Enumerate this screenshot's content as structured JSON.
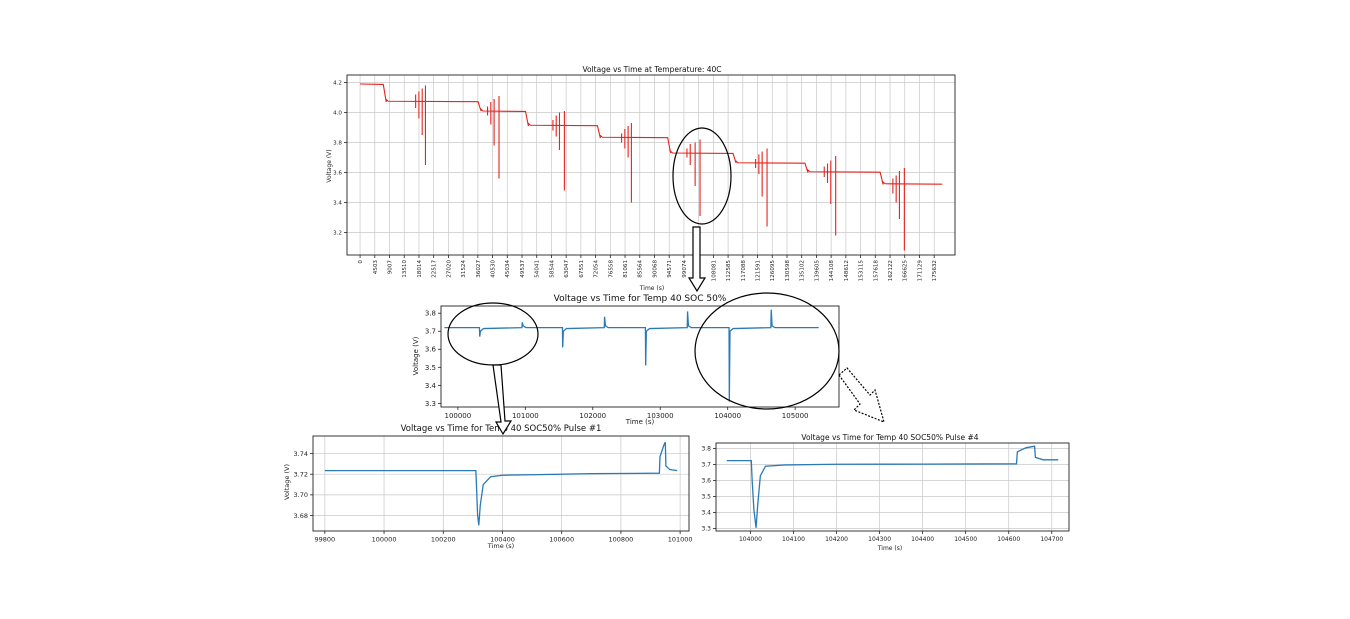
{
  "chart_data": [
    {
      "id": "overview",
      "type": "line",
      "title": "Voltage vs Time at Temperature: 40C",
      "xlabel": "Time (s)",
      "ylabel": "Voltage (V)",
      "ylim": [
        3.05,
        4.25
      ],
      "xlim": [
        -4000,
        182000
      ],
      "grid": true,
      "series_color": "#e8211b",
      "x_tick_labels": [
        "0",
        "4503",
        "9007",
        "13510",
        "18014",
        "22517",
        "27020",
        "31524",
        "36027",
        "40530",
        "45034",
        "49537",
        "54041",
        "58544",
        "63047",
        "67551",
        "72054",
        "76558",
        "81061",
        "85564",
        "90068",
        "94571",
        "99074",
        "103578",
        "108081",
        "112585",
        "117088",
        "121591",
        "126095",
        "130598",
        "135102",
        "139605",
        "144108",
        "148612",
        "153115",
        "157618",
        "162122",
        "166625",
        "171129",
        "175632"
      ],
      "y_ticks": [
        3.2,
        3.4,
        3.6,
        3.8,
        4.0,
        4.2
      ],
      "y_tick_labels": [
        "3.2",
        "3.4",
        "3.6",
        "3.8",
        "4.0",
        "4.2"
      ],
      "soc_blocks": [
        {
          "start": 0,
          "end": 8000,
          "rest": 4.19,
          "next": 4.07
        },
        {
          "start": 8000,
          "end": 37000,
          "rest": 4.075,
          "next": 4.01
        },
        {
          "start": 37000,
          "end": 51500,
          "rest": 4.01,
          "next": 3.91
        },
        {
          "start": 51500,
          "end": 73500,
          "rest": 3.915,
          "next": 3.83
        },
        {
          "start": 73500,
          "end": 95000,
          "rest": 3.835,
          "next": 3.73
        },
        {
          "start": 95000,
          "end": 115000,
          "rest": 3.73,
          "next": 3.665
        },
        {
          "start": 115000,
          "end": 137000,
          "rest": 3.665,
          "next": 3.6
        },
        {
          "start": 137000,
          "end": 160000,
          "rest": 3.605,
          "next": 3.52
        },
        {
          "start": 160000,
          "end": 179000,
          "rest": 3.525,
          "next": 3.525
        }
      ],
      "pulses": [
        {
          "x": 17000,
          "min": 4.03,
          "max": 4.12
        },
        {
          "x": 18000,
          "min": 3.96,
          "max": 4.14
        },
        {
          "x": 19000,
          "min": 3.85,
          "max": 4.16
        },
        {
          "x": 20000,
          "min": 3.65,
          "max": 4.18
        },
        {
          "x": 39000,
          "min": 3.98,
          "max": 4.04
        },
        {
          "x": 40000,
          "min": 3.92,
          "max": 4.07
        },
        {
          "x": 41000,
          "min": 3.78,
          "max": 4.09
        },
        {
          "x": 42500,
          "min": 3.56,
          "max": 4.11
        },
        {
          "x": 59000,
          "min": 3.88,
          "max": 3.95
        },
        {
          "x": 60000,
          "min": 3.84,
          "max": 3.98
        },
        {
          "x": 61000,
          "min": 3.75,
          "max": 4.0
        },
        {
          "x": 62500,
          "min": 3.48,
          "max": 4.01
        },
        {
          "x": 80000,
          "min": 3.8,
          "max": 3.86
        },
        {
          "x": 81000,
          "min": 3.76,
          "max": 3.89
        },
        {
          "x": 82000,
          "min": 3.7,
          "max": 3.91
        },
        {
          "x": 83000,
          "min": 3.4,
          "max": 3.93
        },
        {
          "x": 100000,
          "min": 3.7,
          "max": 3.76
        },
        {
          "x": 101000,
          "min": 3.65,
          "max": 3.79
        },
        {
          "x": 102500,
          "min": 3.51,
          "max": 3.8
        },
        {
          "x": 104000,
          "min": 3.31,
          "max": 3.82
        },
        {
          "x": 121000,
          "min": 3.63,
          "max": 3.69
        },
        {
          "x": 122000,
          "min": 3.59,
          "max": 3.72
        },
        {
          "x": 123000,
          "min": 3.44,
          "max": 3.74
        },
        {
          "x": 124500,
          "min": 3.24,
          "max": 3.76
        },
        {
          "x": 142000,
          "min": 3.57,
          "max": 3.64
        },
        {
          "x": 143000,
          "min": 3.53,
          "max": 3.66
        },
        {
          "x": 144000,
          "min": 3.39,
          "max": 3.68
        },
        {
          "x": 145500,
          "min": 3.18,
          "max": 3.71
        },
        {
          "x": 163000,
          "min": 3.46,
          "max": 3.56
        },
        {
          "x": 164000,
          "min": 3.4,
          "max": 3.58
        },
        {
          "x": 165000,
          "min": 3.29,
          "max": 3.61
        },
        {
          "x": 166500,
          "min": 3.08,
          "max": 3.63
        }
      ]
    },
    {
      "id": "soc50",
      "type": "line",
      "title": "Voltage vs Time for Temp 40 SOC 50%",
      "xlabel": "Time (s)",
      "ylabel": "Voltage (V)",
      "ylim": [
        3.28,
        3.84
      ],
      "xlim": [
        99750,
        105650
      ],
      "grid": false,
      "series_color": "#2a7ab8",
      "x_ticks": [
        100000,
        101000,
        102000,
        103000,
        104000,
        105000
      ],
      "x_tick_labels": [
        "100000",
        "101000",
        "102000",
        "103000",
        "104000",
        "105000"
      ],
      "y_ticks": [
        3.3,
        3.4,
        3.5,
        3.6,
        3.7,
        3.8
      ],
      "y_tick_labels": [
        "3.3",
        "3.4",
        "3.5",
        "3.6",
        "3.7",
        "3.8"
      ],
      "rest_voltage": 3.72,
      "pulses": [
        {
          "start": 100320,
          "min": 3.67,
          "end": 100950,
          "max": 3.75
        },
        {
          "start": 101550,
          "min": 3.61,
          "end": 102170,
          "max": 3.78
        },
        {
          "start": 102780,
          "min": 3.51,
          "end": 103400,
          "max": 3.81
        },
        {
          "start": 104020,
          "min": 3.31,
          "end": 104640,
          "max": 3.82
        }
      ],
      "x_end": 105350
    },
    {
      "id": "pulse1",
      "type": "line",
      "title": "Voltage vs Time for Temp 40 SOC50% Pulse #1",
      "xlabel": "Time (s)",
      "ylabel": "Voltage (V)",
      "ylim": [
        3.665,
        3.757
      ],
      "xlim": [
        99760,
        101030
      ],
      "grid": true,
      "series_color": "#2a7ab8",
      "x_ticks": [
        99800,
        100000,
        100200,
        100400,
        100600,
        100800,
        101000
      ],
      "x_tick_labels": [
        "99800",
        "100000",
        "100200",
        "100400",
        "100600",
        "100800",
        "101000"
      ],
      "y_ticks": [
        3.68,
        3.7,
        3.72,
        3.74
      ],
      "y_tick_labels": [
        "3.68",
        "3.70",
        "3.72",
        "3.74"
      ],
      "points": [
        [
          99800,
          3.7235
        ],
        [
          100310,
          3.7235
        ],
        [
          100312,
          3.71
        ],
        [
          100316,
          3.68
        ],
        [
          100320,
          3.6705
        ],
        [
          100325,
          3.69
        ],
        [
          100335,
          3.71
        ],
        [
          100360,
          3.7175
        ],
        [
          100400,
          3.719
        ],
        [
          100500,
          3.7195
        ],
        [
          100700,
          3.7205
        ],
        [
          100930,
          3.721
        ],
        [
          100932,
          3.737
        ],
        [
          100945,
          3.748
        ],
        [
          100950,
          3.751
        ],
        [
          100952,
          3.728
        ],
        [
          100965,
          3.7245
        ],
        [
          100990,
          3.7235
        ]
      ]
    },
    {
      "id": "pulse4",
      "type": "line",
      "title": "Voltage vs Time for Temp 40 SOC50% Pulse #4",
      "xlabel": "Time (s)",
      "ylabel": "Voltage (V)",
      "ylim": [
        3.285,
        3.835
      ],
      "xlim": [
        103920,
        104740
      ],
      "grid": true,
      "series_color": "#2a7ab8",
      "x_ticks": [
        104000,
        104100,
        104200,
        104300,
        104400,
        104500,
        104600,
        104700
      ],
      "x_tick_labels": [
        "104000",
        "104100",
        "104200",
        "104300",
        "104400",
        "104500",
        "104600",
        "104700"
      ],
      "y_ticks": [
        3.3,
        3.4,
        3.5,
        3.6,
        3.7,
        3.8
      ],
      "y_tick_labels": [
        "3.3",
        "3.4",
        "3.5",
        "3.6",
        "3.7",
        "3.8"
      ],
      "points": [
        [
          103945,
          3.725
        ],
        [
          104002,
          3.725
        ],
        [
          104004,
          3.6
        ],
        [
          104008,
          3.42
        ],
        [
          104013,
          3.305
        ],
        [
          104017,
          3.45
        ],
        [
          104023,
          3.63
        ],
        [
          104035,
          3.69
        ],
        [
          104080,
          3.698
        ],
        [
          104200,
          3.702
        ],
        [
          104400,
          3.703
        ],
        [
          104618,
          3.705
        ],
        [
          104620,
          3.78
        ],
        [
          104640,
          3.805
        ],
        [
          104660,
          3.815
        ],
        [
          104662,
          3.745
        ],
        [
          104680,
          3.73
        ],
        [
          104715,
          3.73
        ]
      ]
    }
  ]
}
